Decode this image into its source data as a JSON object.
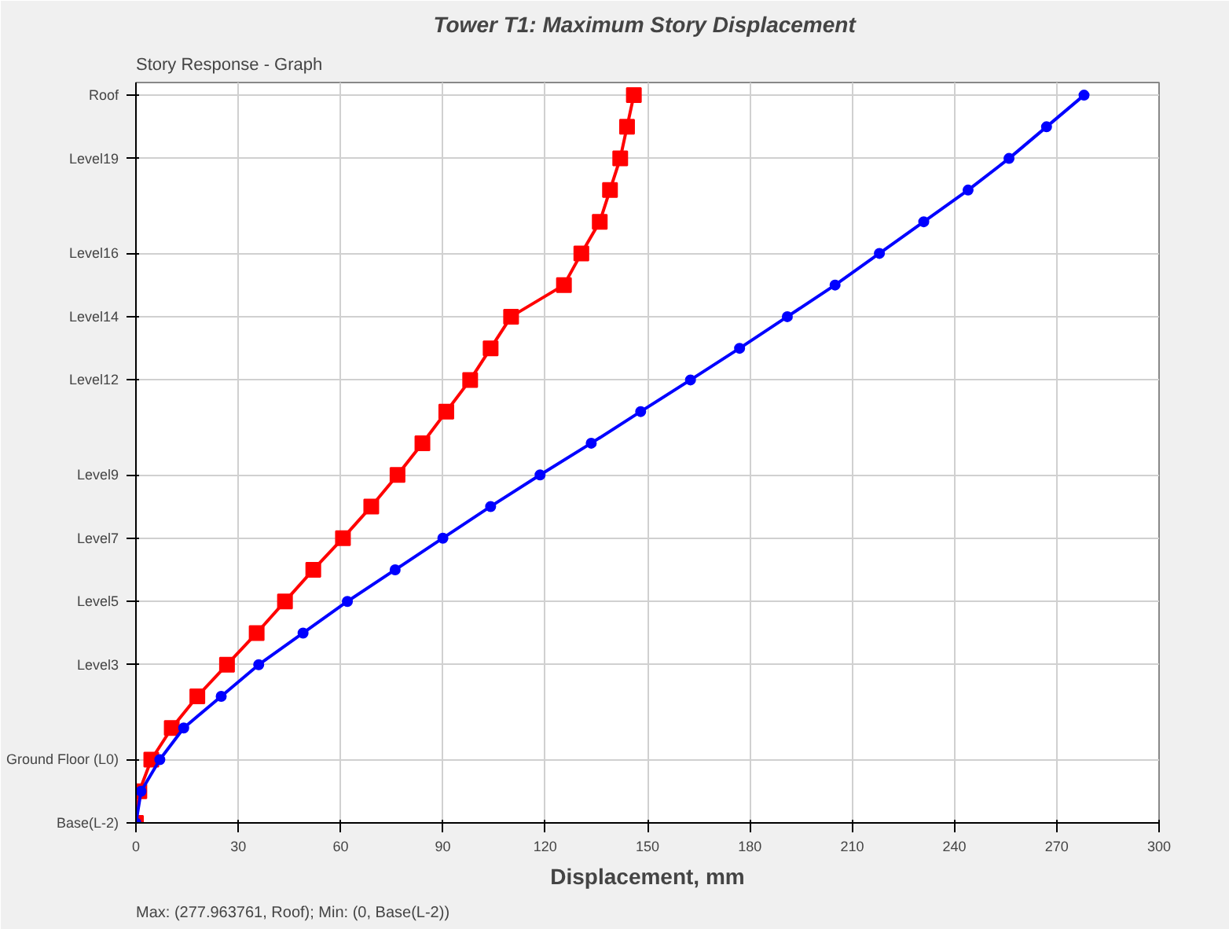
{
  "chart_data": {
    "type": "line",
    "orientation": "horizontal",
    "title": "Tower T1:  Maximum Story Displacement",
    "xlabel": "Displacement, mm",
    "annotations": [
      "Story Response - Graph",
      "Max: (277.963761, Roof);   Min: (0, Base(L-2))"
    ],
    "categories": [
      "Roof",
      null,
      "Level19",
      null,
      null,
      "Level16",
      null,
      "Level14",
      null,
      "Level12",
      null,
      null,
      "Level9",
      null,
      "Level7",
      null,
      "Level5",
      null,
      "Level3",
      null,
      null,
      "Ground Floor (L0)",
      null,
      "Base(L-2)"
    ],
    "series": [
      {
        "color": "#0000ff",
        "marker": "circle",
        "values": [
          278,
          267,
          256,
          244,
          231,
          218,
          205,
          191,
          177,
          162.6,
          148,
          133.5,
          118.5,
          104,
          90,
          76,
          62,
          49,
          36,
          25,
          14,
          7,
          1.5,
          0
        ]
      },
      {
        "color": "#ff0000",
        "marker": "square",
        "values": [
          146,
          144,
          142,
          139,
          136,
          130.6,
          125.5,
          110,
          104,
          98,
          91,
          84,
          76.7,
          69,
          60.7,
          52,
          43.7,
          35.4,
          26.7,
          18,
          10.5,
          4.5,
          1,
          0
        ]
      }
    ],
    "xlim": [
      0,
      300
    ],
    "xticks": [
      0,
      30,
      60,
      90,
      120,
      150,
      180,
      210,
      240,
      270,
      300
    ],
    "grid": true,
    "line_style": "solid"
  }
}
